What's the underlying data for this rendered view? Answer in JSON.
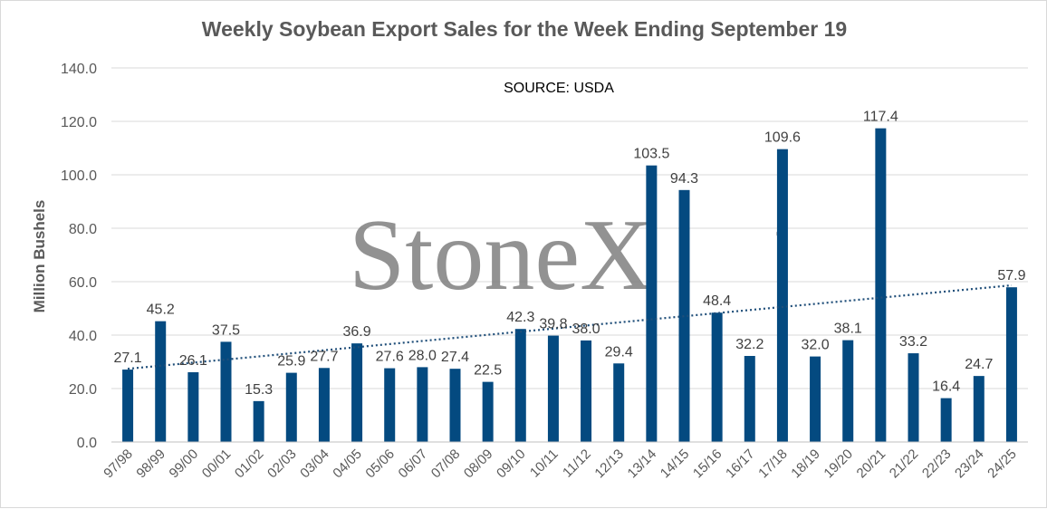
{
  "chart_data": {
    "type": "bar",
    "title": "Weekly Soybean Export Sales for the Week Ending September 19",
    "annotation": "SOURCE: USDA",
    "ylabel": "Million Bushels",
    "xlabel": "",
    "ylim": [
      0,
      140
    ],
    "yticks": [
      "0.0",
      "20.0",
      "40.0",
      "60.0",
      "80.0",
      "100.0",
      "120.0",
      "140.0"
    ],
    "ytick_values": [
      0,
      20,
      40,
      60,
      80,
      100,
      120,
      140
    ],
    "grid": "horizontal",
    "categories": [
      "97/98",
      "98/99",
      "99/00",
      "00/01",
      "01/02",
      "02/03",
      "03/04",
      "04/05",
      "05/06",
      "06/07",
      "07/08",
      "08/09",
      "09/10",
      "10/11",
      "11/12",
      "12/13",
      "13/14",
      "14/15",
      "15/16",
      "16/17",
      "17/18",
      "18/19",
      "19/20",
      "20/21",
      "21/22",
      "22/23",
      "23/24",
      "24/25"
    ],
    "values": [
      27.1,
      45.2,
      26.1,
      37.5,
      15.3,
      25.9,
      27.7,
      36.9,
      27.6,
      28.0,
      27.4,
      22.5,
      42.3,
      39.8,
      38.0,
      29.4,
      103.5,
      94.3,
      48.4,
      32.2,
      109.6,
      32.0,
      38.1,
      117.4,
      33.2,
      16.4,
      24.7,
      57.9
    ],
    "data_labels": [
      "27.1",
      "45.2",
      "26.1",
      "37.5",
      "15.3",
      "25.9",
      "27.7",
      "36.9",
      "27.6",
      "28.0",
      "27.4",
      "22.5",
      "42.3",
      "39.8",
      "38.0",
      "29.4",
      "103.5",
      "94.3",
      "48.4",
      "32.2",
      "109.6",
      "32.0",
      "38.1",
      "117.4",
      "33.2",
      "16.4",
      "24.7",
      "57.9"
    ],
    "trendline": {
      "type": "linear",
      "style": "dotted"
    },
    "colors": {
      "bar": "#044A80",
      "trend": "#1F4E79",
      "grid": "#d9d9d9",
      "axis": "#bfbfbf"
    }
  },
  "watermark": {
    "text": "StoneX",
    "mark": "®"
  }
}
